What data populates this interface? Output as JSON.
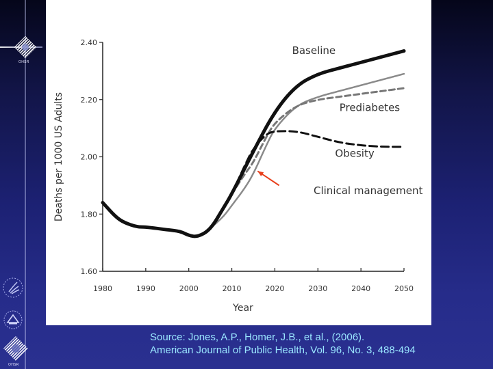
{
  "slide": {
    "background_color": "#1c2173",
    "source_line1": "Source: Jones, A.P., Homer, J.B., et al., (2006).",
    "source_line2": "American Journal of Public Health, Vol. 96, No. 3, 488-494",
    "source_color": "#9ae6ff",
    "logos": [
      {
        "name": "ohsr-logo",
        "caption": "OHSR"
      },
      {
        "name": "hhs-logo"
      },
      {
        "name": "nih-logo"
      },
      {
        "name": "ohsr-logo-bottom",
        "caption": "OHSR"
      }
    ]
  },
  "chart_data": {
    "type": "line",
    "title": "",
    "xlabel": "Year",
    "ylabel": "Deaths per 1000 US Adults",
    "xlim": [
      1980,
      2050
    ],
    "ylim": [
      1.6,
      2.4
    ],
    "xticks": [
      "1980",
      "1990",
      "2000",
      "2010",
      "2020",
      "2030",
      "2040",
      "2050"
    ],
    "yticks": [
      "1.60",
      "1.80",
      "2.00",
      "2.20",
      "2.40"
    ],
    "grid": false,
    "legend": "inline labels",
    "series": [
      {
        "name": "Baseline",
        "style": "solid thick black",
        "x": [
          1980,
          1983,
          1985,
          1988,
          1990,
          1995,
          1998,
          2000,
          2002,
          2005,
          2008,
          2010,
          2015,
          2020,
          2025,
          2030,
          2035,
          2040,
          2045,
          2050
        ],
        "values": [
          1.84,
          1.79,
          1.77,
          1.755,
          1.755,
          1.745,
          1.74,
          1.725,
          1.72,
          1.745,
          1.82,
          1.87,
          2.02,
          2.16,
          2.25,
          2.29,
          2.31,
          2.33,
          2.35,
          2.37
        ]
      },
      {
        "name": "Prediabetes",
        "style": "dashed gray",
        "x": [
          2010,
          2013,
          2015,
          2018,
          2020,
          2025,
          2030,
          2035,
          2040,
          2045,
          2050
        ],
        "values": [
          1.87,
          1.94,
          1.98,
          2.07,
          2.12,
          2.18,
          2.2,
          2.21,
          2.22,
          2.23,
          2.24
        ]
      },
      {
        "name": "Obesity",
        "style": "dashed black",
        "x": [
          2010,
          2013,
          2015,
          2018,
          2020,
          2025,
          2030,
          2035,
          2040,
          2045,
          2050
        ],
        "values": [
          1.87,
          1.97,
          2.03,
          2.08,
          2.09,
          2.09,
          2.07,
          2.05,
          2.04,
          2.035,
          2.035
        ]
      },
      {
        "name": "Clinical management",
        "style": "dotted gray",
        "x": [
          2005,
          2008,
          2010,
          2013,
          2015,
          2018,
          2020,
          2025,
          2030,
          2035,
          2040,
          2045,
          2050
        ],
        "values": [
          1.75,
          1.79,
          1.83,
          1.89,
          1.94,
          2.04,
          2.1,
          2.18,
          2.21,
          2.23,
          2.25,
          2.27,
          2.29
        ]
      }
    ],
    "annotations": [
      {
        "text": "Baseline",
        "x": 2024,
        "y": 2.36
      },
      {
        "text": "Prediabetes",
        "x": 2035,
        "y": 2.16
      },
      {
        "text": "Obesity",
        "x": 2034,
        "y": 2.0
      },
      {
        "text": "Clinical management",
        "x": 2029,
        "y": 1.87
      },
      {
        "text": "arrow",
        "from": [
          2021,
          1.9
        ],
        "to": [
          2016,
          1.95
        ],
        "color": "#e8401c"
      }
    ]
  }
}
